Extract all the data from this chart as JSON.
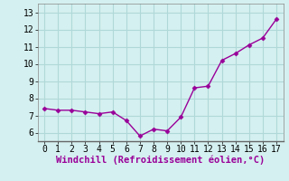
{
  "x": [
    0,
    1,
    2,
    3,
    4,
    5,
    6,
    7,
    8,
    9,
    10,
    11,
    12,
    13,
    14,
    15,
    16,
    17
  ],
  "y": [
    7.4,
    7.3,
    7.3,
    7.2,
    7.1,
    7.2,
    6.7,
    5.8,
    6.2,
    6.1,
    6.9,
    8.6,
    8.7,
    10.2,
    10.6,
    11.1,
    11.5,
    12.6
  ],
  "line_color": "#990099",
  "marker": "D",
  "marker_size": 2.5,
  "xlabel": "Windchill (Refroidissement éolien,°C)",
  "xlim": [
    -0.5,
    17.5
  ],
  "ylim": [
    5.5,
    13.5
  ],
  "yticks": [
    6,
    7,
    8,
    9,
    10,
    11,
    12,
    13
  ],
  "xticks": [
    0,
    1,
    2,
    3,
    4,
    5,
    6,
    7,
    8,
    9,
    10,
    11,
    12,
    13,
    14,
    15,
    16,
    17
  ],
  "grid_color": "#b0d8d8",
  "background_color": "#d5f0f0",
  "tick_label_fontsize": 7,
  "xlabel_fontsize": 7.5,
  "line_width": 1.0
}
